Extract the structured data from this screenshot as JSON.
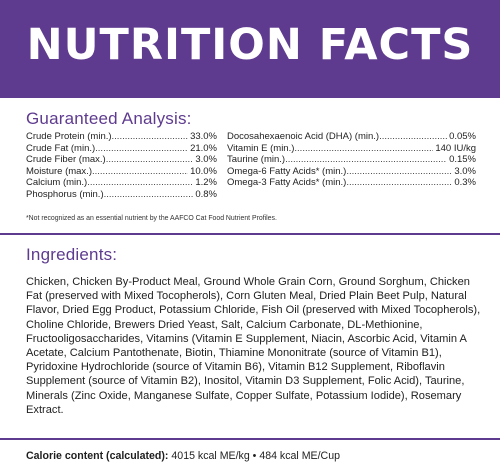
{
  "header": {
    "title": "NUTRITION FACTS"
  },
  "analysis": {
    "title": "Guaranteed Analysis:",
    "left": [
      {
        "label": "Crude Protein (min.)",
        "value": "33.0%"
      },
      {
        "label": "Crude Fat (min.)",
        "value": "21.0%"
      },
      {
        "label": "Crude Fiber (max.)",
        "value": "3.0%"
      },
      {
        "label": "Moisture (max.)",
        "value": "10.0%"
      },
      {
        "label": "Calcium (min.)",
        "value": "1.2%"
      },
      {
        "label": "Phosphorus (min.)",
        "value": "0.8%"
      }
    ],
    "right": [
      {
        "label": "Docosahexaenoic Acid (DHA) (min.)",
        "value": "0.05%"
      },
      {
        "label": "Vitamin E (min.)",
        "value": "140 IU/kg"
      },
      {
        "label": "Taurine (min.)",
        "value": "0.15%"
      },
      {
        "label": "Omega-6 Fatty Acids* (min.)",
        "value": "3.0%"
      },
      {
        "label": "Omega-3 Fatty Acids* (min.)",
        "value": "0.3%"
      }
    ],
    "footnote": "*Not recognized as an essential nutrient by the AAFCO Cat Food Nutrient Profiles."
  },
  "ingredients": {
    "title": "Ingredients:",
    "text": "Chicken, Chicken By-Product Meal, Ground Whole Grain Corn, Ground Sorghum, Chicken Fat (preserved with Mixed Tocopherols), Corn Gluten Meal, Dried Plain Beet Pulp, Natural Flavor, Dried Egg Product, Potassium Chloride, Fish Oil (preserved with Mixed Tocopherols), Choline Chloride, Brewers Dried Yeast, Salt, Calcium Carbonate, DL-Methionine, Fructooligosaccharides, Vitamins (Vitamin E Supplement, Niacin, Ascorbic Acid, Vitamin A Acetate, Calcium Pantothenate, Biotin, Thiamine Mononitrate (source of Vitamin B1), Pyridoxine Hydrochloride (source of Vitamin B6), Vitamin B12 Supplement, Riboflavin Supplement (source of Vitamin B2), Inositol, Vitamin D3 Supplement, Folic Acid), Taurine, Minerals (Zinc Oxide, Manganese Sulfate, Copper Sulfate, Potassium Iodide), Rosemary Extract."
  },
  "calorie": {
    "label": "Calorie content (calculated):",
    "value": "4015 kcal ME/kg • 484 kcal ME/Cup"
  },
  "colors": {
    "brand_purple": "#5e3b8f"
  }
}
